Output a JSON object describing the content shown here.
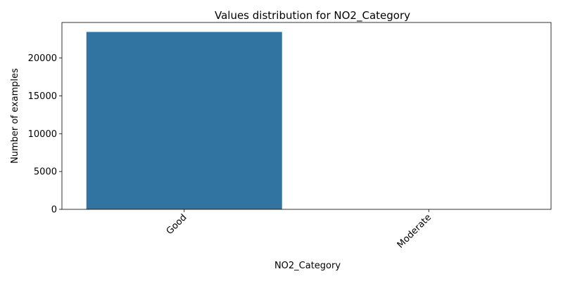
{
  "chart_data": {
    "type": "bar",
    "title": "Values distribution for NO2_Category",
    "xlabel": "NO2_Category",
    "ylabel": "Number of examples",
    "categories": [
      "Good",
      "Moderate"
    ],
    "values": [
      23450,
      3
    ],
    "ylim": [
      0,
      24700
    ],
    "yticks": [
      0,
      5000,
      10000,
      15000,
      20000
    ],
    "bar_color": "#3274a1",
    "grid": false
  }
}
